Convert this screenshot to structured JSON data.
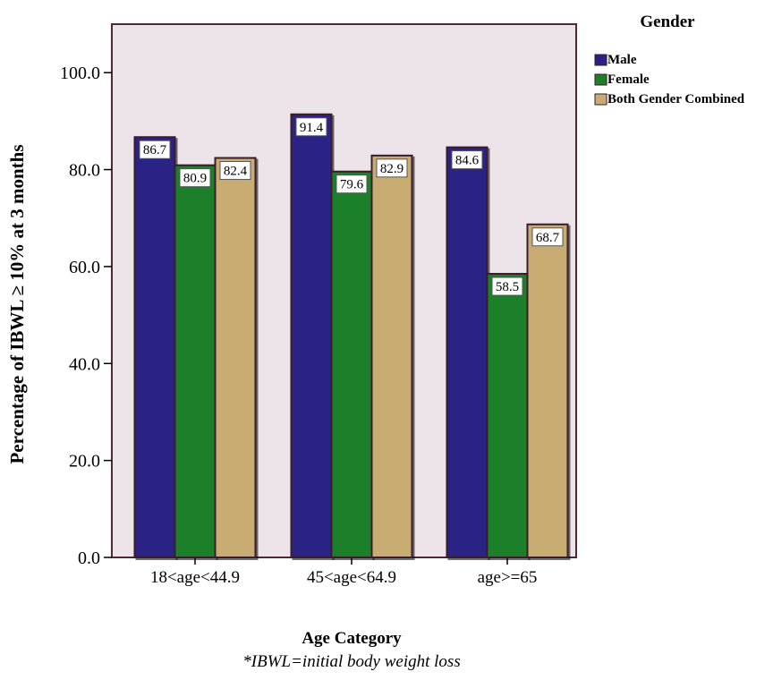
{
  "chart_data": {
    "type": "bar",
    "categories": [
      "18<age<44.9",
      "45<age<64.9",
      "age>=65"
    ],
    "series": [
      {
        "name": "Male",
        "values": [
          86.7,
          91.4,
          84.6
        ],
        "color": "#2b2084"
      },
      {
        "name": "Female",
        "values": [
          80.9,
          79.6,
          58.5
        ],
        "color": "#1f7f29"
      },
      {
        "name": "Both Gender Combined",
        "values": [
          82.4,
          82.9,
          68.7
        ],
        "color": "#c8ac72"
      }
    ],
    "title": "",
    "xlabel": "Age Category",
    "ylabel": "Percentage of IBWL ≥ 10% at 3 months",
    "ylim": [
      0,
      110
    ],
    "y_ticks": [
      "0.0",
      "20.0",
      "40.0",
      "60.0",
      "80.0",
      "100.0"
    ],
    "legend_title": "Gender",
    "legend_position": "top-right",
    "footnote": "*IBWL=initial body weight loss",
    "plot_background": "#ede4ea",
    "bar_outline": "#3a1a2a",
    "frame_color": "#4a2a3a",
    "grid": false
  }
}
